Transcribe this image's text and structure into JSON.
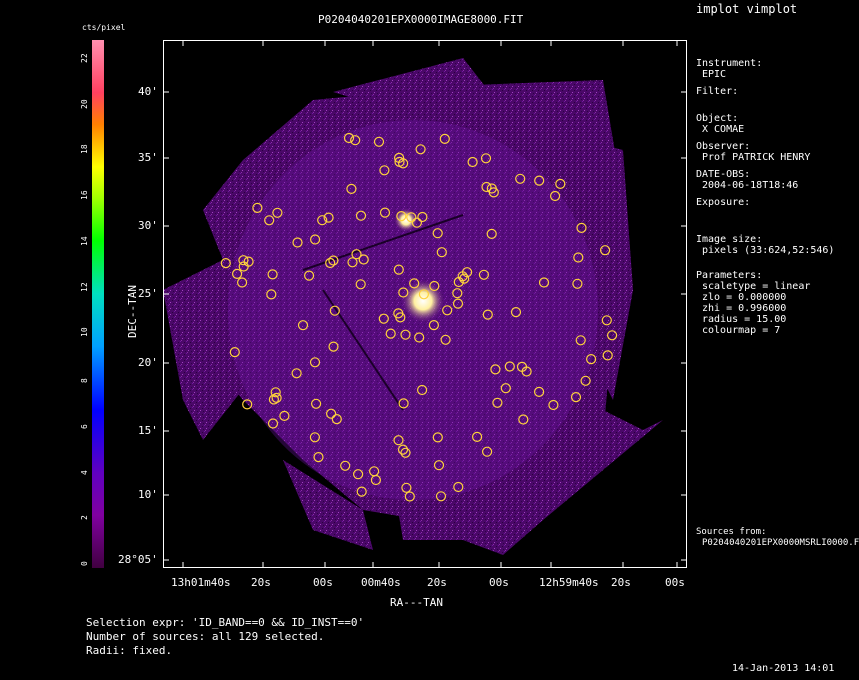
{
  "window": {
    "app_title": "implot vimplot"
  },
  "plot": {
    "title": "P0204040201EPX0000IMAGE8000.FIT",
    "xlabel": "RA---TAN",
    "ylabel": "DEC--TAN",
    "x_ticks": [
      "13h01m40s",
      "20s",
      "00s",
      "00m40s",
      "20s",
      "00s",
      "12h59m40s",
      "20s",
      "00s"
    ],
    "y_ticks": [
      "40'",
      "35'",
      "30'",
      "25'",
      "20'",
      "15'",
      "10'",
      "28°05'"
    ],
    "sources_count": 129
  },
  "colorbar": {
    "unit": "cts/pixel",
    "ticks": [
      "0",
      "2",
      "4",
      "6",
      "8",
      "10",
      "12",
      "14",
      "16",
      "18",
      "20",
      "22"
    ],
    "colormap": "rainbow (dark purple → blue → green → yellow → red → pink)"
  },
  "info": {
    "instrument_label": "Instrument:",
    "instrument": "EPIC",
    "filter_label": "Filter:",
    "object_label": "Object:",
    "object": "X COMAE",
    "observer_label": "Observer:",
    "observer": "Prof PATRICK HENRY",
    "date_label": "DATE-OBS:",
    "date": "2004-06-18T18:46",
    "exposure_label": "Exposure:",
    "image_size_label": "Image size:",
    "image_size": "pixels (33:624,52:546)",
    "parameters_label": "Parameters:",
    "param_scaletype": "scaletype = linear",
    "param_zlo": "zlo = 0.000000",
    "param_zhi": "zhi = 0.996000",
    "param_radius": "radius = 15.00",
    "param_colourmap": "colourmap = 7",
    "sources_from_label": "Sources from:",
    "sources_from": "P0204040201EPX0000MSRLI0000.F"
  },
  "footer": {
    "selection": "Selection expr: 'ID_BAND==0 && ID_INST==0'",
    "number": "Number of sources: all 129 selected.",
    "radii": "Radii: fixed.",
    "timestamp": "14-Jan-2013 14:01"
  },
  "colors": {
    "source_marker": "#ffd23c",
    "background": "#000000",
    "image_base": "#5a0a78"
  }
}
